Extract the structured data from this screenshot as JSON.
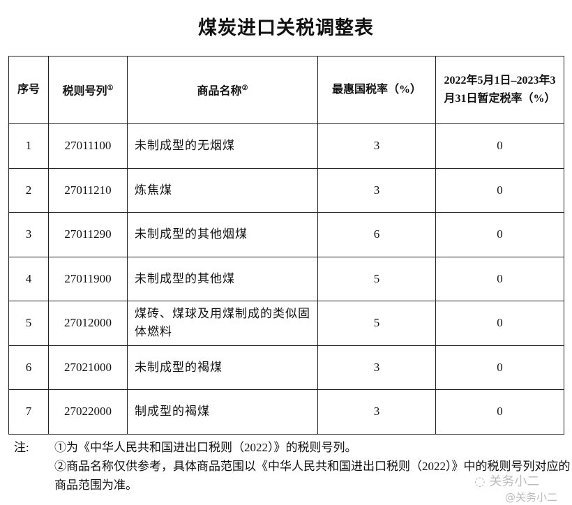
{
  "title": "煤炭进口关税调整表",
  "table": {
    "headers": {
      "seq": "序号",
      "code": "税则号列",
      "code_note": "①",
      "name": "商品名称",
      "name_note": "②",
      "mfn": "最惠国税率（%）",
      "temp": "2022年5月1日–2023年3月31日暂定税率（%）"
    },
    "rows": [
      {
        "seq": "1",
        "code": "27011100",
        "name": "未制成型的无烟煤",
        "mfn": "3",
        "temp": "0"
      },
      {
        "seq": "2",
        "code": "27011210",
        "name": "炼焦煤",
        "mfn": "3",
        "temp": "0"
      },
      {
        "seq": "3",
        "code": "27011290",
        "name": "未制成型的其他烟煤",
        "mfn": "6",
        "temp": "0"
      },
      {
        "seq": "4",
        "code": "27011900",
        "name": "未制成型的其他煤",
        "mfn": "5",
        "temp": "0"
      },
      {
        "seq": "5",
        "code": "27012000",
        "name": "煤砖、煤球及用煤制成的类似固体燃料",
        "mfn": "5",
        "temp": "0"
      },
      {
        "seq": "6",
        "code": "27021000",
        "name": "未制成型的褐煤",
        "mfn": "3",
        "temp": "0"
      },
      {
        "seq": "7",
        "code": "27022000",
        "name": "制成型的褐煤",
        "mfn": "3",
        "temp": "0"
      }
    ]
  },
  "notes": {
    "label": "注:",
    "items": [
      "①为《中华人民共和国进出口税则（2022）》的税则号列。",
      "②商品名称仅供参考，具体商品范围以《中华人民共和国进出口税则（2022）》中的税则号列对应的商品范围为准。"
    ]
  },
  "watermark": {
    "account": "关务小二",
    "handle": "@关务小二"
  }
}
